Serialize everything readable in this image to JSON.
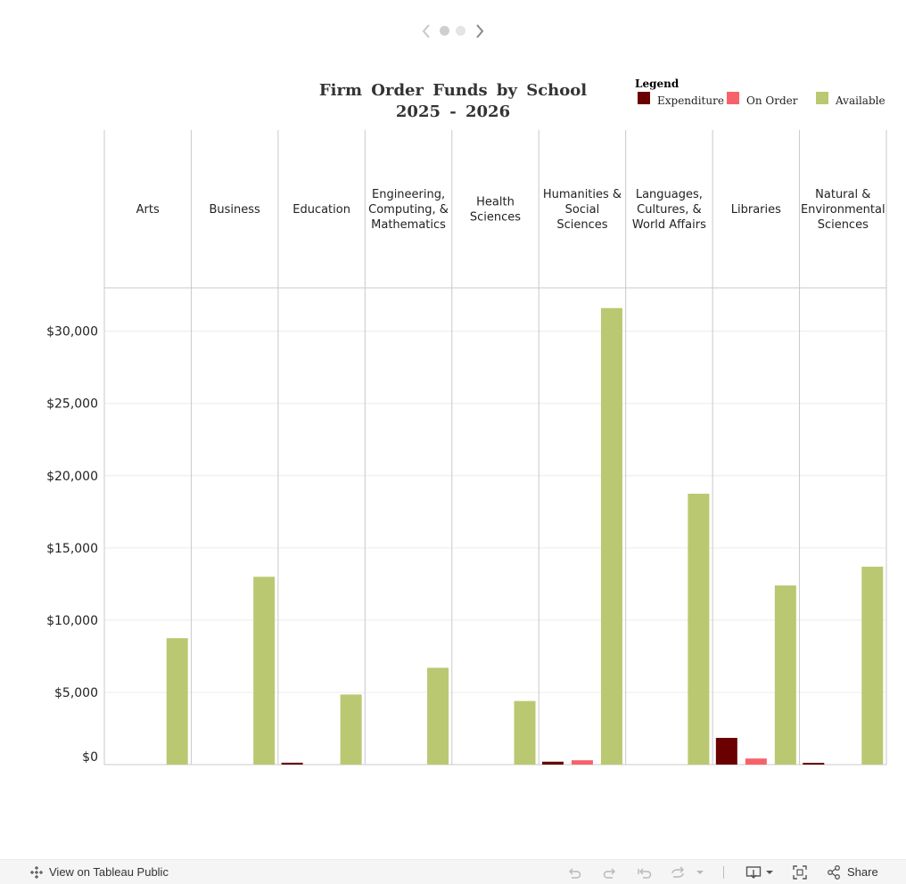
{
  "story": {
    "points": 2,
    "active": 1
  },
  "title": {
    "line1": "Firm Order Funds by School",
    "line2": "2025 - 2026"
  },
  "legend": {
    "title": "Legend",
    "items": [
      {
        "label": "Expenditure",
        "color": "#6b0000"
      },
      {
        "label": "On Order",
        "color": "#f7626a"
      },
      {
        "label": "Available",
        "color": "#bac872"
      }
    ]
  },
  "chart_data": {
    "type": "bar",
    "title": "Firm Order Funds by School 2025 - 2026",
    "categories": [
      "Arts",
      "Business",
      "Education",
      "Engineering, Computing, & Mathematics",
      "Health Sciences",
      "Humanities & Social Sciences",
      "Languages, Cultures, & World Affairs",
      "Libraries",
      "Natural & Environmental Sciences"
    ],
    "category_header_lines": [
      [
        "Arts"
      ],
      [
        "Business"
      ],
      [
        "Education"
      ],
      [
        "Engineering,",
        "Computing, &",
        "Mathematics"
      ],
      [
        "Health",
        "Sciences"
      ],
      [
        "Humanities &",
        "Social",
        "Sciences"
      ],
      [
        "Languages,",
        "Cultures, &",
        "World Affairs"
      ],
      [
        "Libraries"
      ],
      [
        "Natural &",
        "Environmental",
        "Sciences"
      ]
    ],
    "series": [
      {
        "name": "Expenditure",
        "color": "#6b0000",
        "values": [
          0,
          0,
          130,
          0,
          0,
          200,
          0,
          1850,
          80
        ]
      },
      {
        "name": "On Order",
        "color": "#f7626a",
        "values": [
          0,
          0,
          0,
          0,
          0,
          300,
          0,
          420,
          0
        ]
      },
      {
        "name": "Available",
        "color": "#bac872",
        "values": [
          8750,
          13000,
          4850,
          6700,
          4400,
          31600,
          18750,
          12400,
          13700
        ]
      }
    ],
    "ylim": [
      0,
      33000
    ],
    "yticks": [
      0,
      5000,
      10000,
      15000,
      20000,
      25000,
      30000
    ],
    "ytick_labels": [
      "$0",
      "$5,000",
      "$10,000",
      "$15,000",
      "$20,000",
      "$25,000",
      "$30,000"
    ],
    "grid": true,
    "legend_position": "top-right"
  },
  "toolbar": {
    "view_label": "View on Tableau Public",
    "share_label": "Share"
  }
}
